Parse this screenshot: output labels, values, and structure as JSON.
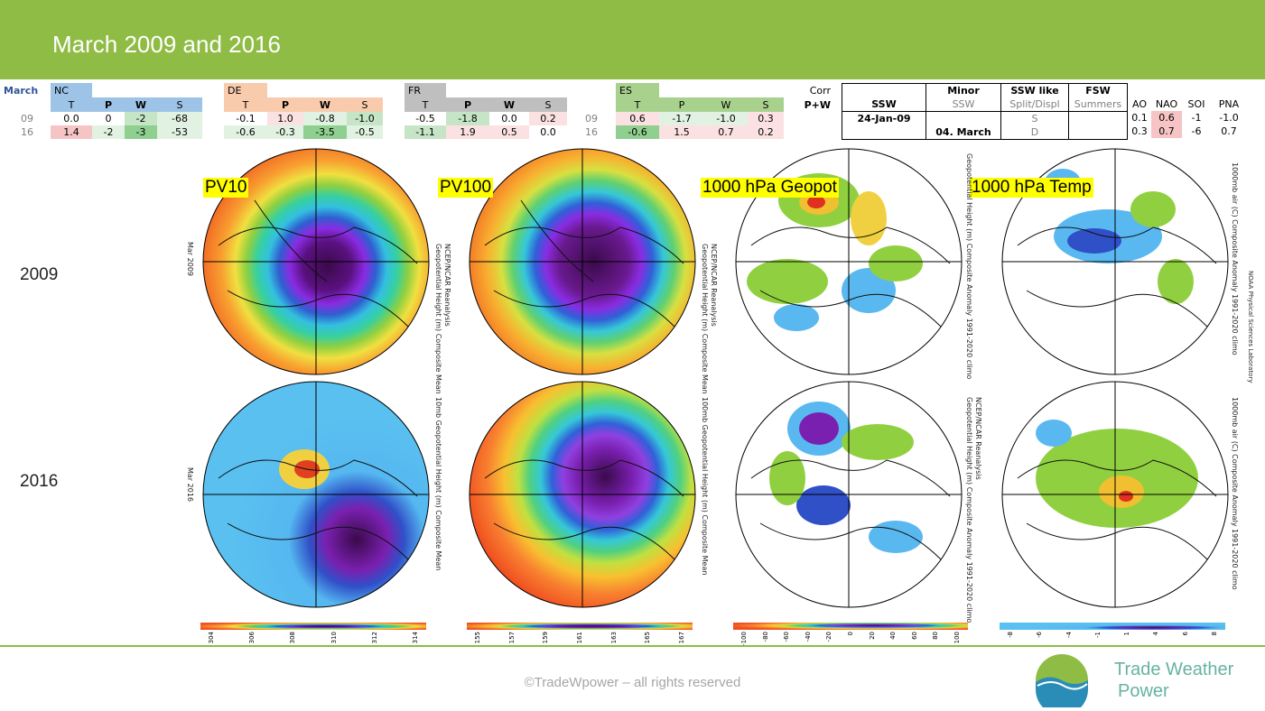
{
  "title": "March 2009 and 2016",
  "table": {
    "month": "March",
    "regions": [
      {
        "name": "NC",
        "cols": [
          "T",
          "P",
          "W",
          "S"
        ],
        "rows": [
          [
            "0.0",
            "0",
            "-2",
            "-68"
          ],
          [
            "1.4",
            "-2",
            "-3",
            "-53"
          ]
        ]
      },
      {
        "name": "DE",
        "cols": [
          "T",
          "P",
          "W",
          "S"
        ],
        "rows": [
          [
            "-0.1",
            "1.0",
            "-0.8",
            "-1.0"
          ],
          [
            "-0.6",
            "-0.3",
            "-3.5",
            "-0.5"
          ]
        ]
      },
      {
        "name": "FR",
        "cols": [
          "T",
          "P",
          "W",
          "S"
        ],
        "rows": [
          [
            "-0.5",
            "-1.8",
            "0.0",
            "0.2"
          ],
          [
            "-1.1",
            "1.9",
            "0.5",
            "0.0"
          ]
        ]
      },
      {
        "name": "ES",
        "cols": [
          "T",
          "P",
          "W",
          "S"
        ],
        "rows": [
          [
            "0.6",
            "-1.7",
            "-1.0",
            "0.3"
          ],
          [
            "-0.6",
            "1.5",
            "0.7",
            "0.2"
          ]
        ]
      }
    ],
    "years": [
      "09",
      "16"
    ],
    "corr": "Corr",
    "pw": "P+W"
  },
  "ssw": {
    "headers_top": [
      "",
      "Minor",
      "SSW like",
      "FSW"
    ],
    "headers_sub": [
      "SSW",
      "SSW",
      "Split/Displ",
      "Summers"
    ],
    "rows": [
      [
        "24-Jan-09",
        "",
        "S",
        ""
      ],
      [
        "",
        "04. March",
        "D",
        ""
      ]
    ]
  },
  "indices": {
    "headers": [
      "AO",
      "NAO",
      "SOI",
      "PNA"
    ],
    "rows": [
      [
        "0.1",
        "0.6",
        "-1",
        "-1.0"
      ],
      [
        "0.3",
        "0.7",
        "-6",
        "0.7"
      ]
    ]
  },
  "maps": {
    "labels": [
      "PV10",
      "PV100",
      "1000 hPa Geopot",
      "1000 hPa Temp"
    ],
    "row_labels": [
      "2009",
      "2016"
    ],
    "captions": {
      "pv10_2009": "NCEP/NCAR Reanalysis\nGeopotential Height (m) Composite Mean",
      "pv100_2009": "NCEP/NCAR Reanalysis\nGeopotential Height (m) Composite Mean",
      "geo_2009": "Geopotential Height (m) Composite Anomaly 1991-2020 climo",
      "temp_2009": "1000mb air (C) Composite Anomaly 1991-2020 climo",
      "pv10_2016": "10mb Geopotential Height (m) Composite Mean",
      "pv100_2016": "100mb Geopotential Height (m) Composite Mean",
      "geo_2016": "NCEP/NCAR Reanalysis\nGeopotential Height (m) Composite Anomaly 1991-2020 climo",
      "temp_2016": "1000mb air (C) Composite Anomaly 1991-2020 climo"
    },
    "side_labels": {
      "m2009": "Mar 2009",
      "m2016": "Mar 2016"
    },
    "lab": "NOAA Physical Sciences Laboratory",
    "colorbars": [
      {
        "ticks": [
          "304",
          "306",
          "308",
          "310",
          "312",
          "314"
        ]
      },
      {
        "ticks": [
          "155",
          "157",
          "159",
          "161",
          "163",
          "165",
          "167"
        ]
      },
      {
        "ticks": [
          "-100",
          "-80",
          "-60",
          "-40",
          "-20",
          "0",
          "20",
          "40",
          "60",
          "80",
          "100"
        ]
      },
      {
        "ticks": [
          "-8",
          "-6",
          "-4",
          "-1",
          "1",
          "4",
          "6",
          "8"
        ]
      }
    ]
  },
  "footer": {
    "copyright": "©TradeWpower – all rights reserved",
    "brand_line1": "Trade Weather",
    "brand_line2": "Power"
  },
  "colors": {
    "header": "#8fbc45",
    "brand": "#66b3a0"
  }
}
